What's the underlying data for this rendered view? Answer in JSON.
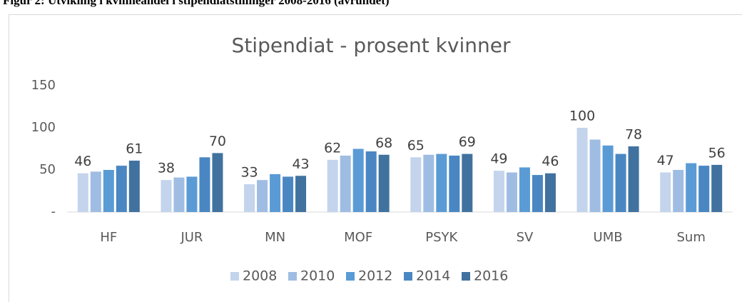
{
  "chart_data": {
    "type": "bar",
    "caption": "Figur 2: Utvikling i kvinneandel i stipendiatstillinger 2008-2016 (avrundet)",
    "title": "Stipendiat - prosent kvinner",
    "categories": [
      "HF",
      "JUR",
      "MN",
      "MOF",
      "PSYK",
      "SV",
      "UMB",
      "Sum"
    ],
    "series": [
      {
        "name": "2008",
        "color": "#c3d4ec",
        "data_labels": true,
        "values": [
          46,
          38,
          33,
          62,
          65,
          49,
          100,
          47
        ]
      },
      {
        "name": "2010",
        "color": "#9fbde3",
        "data_labels": false,
        "values": [
          48,
          41,
          38,
          67,
          68,
          47,
          86,
          50
        ]
      },
      {
        "name": "2012",
        "color": "#5b9bd5",
        "data_labels": false,
        "values": [
          50,
          42,
          45,
          75,
          69,
          53,
          79,
          58
        ]
      },
      {
        "name": "2014",
        "color": "#4a87c2",
        "data_labels": false,
        "values": [
          55,
          65,
          42,
          72,
          67,
          44,
          69,
          55
        ]
      },
      {
        "name": "2016",
        "color": "#41729f",
        "data_labels": true,
        "values": [
          61,
          70,
          43,
          68,
          69,
          46,
          78,
          56
        ]
      }
    ],
    "ylim": [
      0,
      150
    ],
    "yticks": [
      {
        "value": 0,
        "label": "-"
      },
      50,
      100,
      150
    ],
    "grid": false,
    "legend": "bottom"
  }
}
